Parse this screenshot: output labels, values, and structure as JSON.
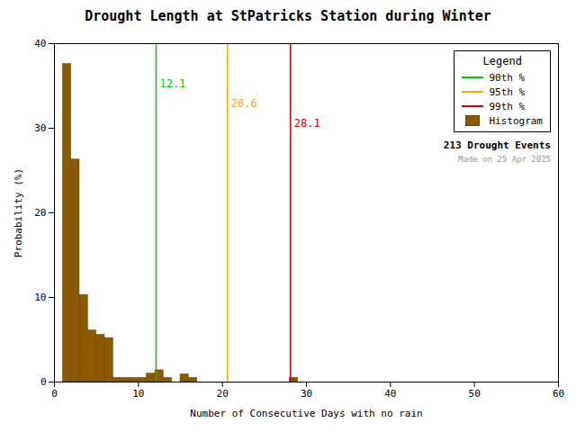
{
  "chart_data": {
    "type": "histogram",
    "title": "Drought Length at StPatricks Station during Winter",
    "xlabel": "Number of Consecutive Days with no rain",
    "ylabel": "Probability (%)",
    "xlim": [
      0,
      60
    ],
    "ylim": [
      0,
      40
    ],
    "xticks": [
      0,
      10,
      20,
      30,
      40,
      50,
      60
    ],
    "yticks": [
      0,
      10,
      20,
      30,
      40
    ],
    "bins": [
      1,
      2,
      3,
      4,
      5,
      6,
      7,
      8,
      9,
      10,
      11,
      12,
      13,
      14,
      15,
      16,
      17,
      18,
      19,
      20,
      21,
      22,
      23,
      24,
      25,
      26,
      27,
      28,
      29,
      30,
      31
    ],
    "series": [
      {
        "name": "90th %",
        "type": "vline",
        "color": "#00CC00",
        "values": [
          12.1
        ],
        "value_labels": [
          "12.1"
        ]
      },
      {
        "name": "95th %",
        "type": "vline",
        "color": "#FFA500",
        "values": [
          20.6
        ],
        "value_labels": [
          "20.6"
        ]
      },
      {
        "name": "99th %",
        "type": "vline",
        "color": "#CC0000",
        "values": [
          28.1
        ],
        "value_labels": [
          "28.1"
        ]
      },
      {
        "name": "Histogram",
        "type": "bar",
        "color": "#8B5A00",
        "values": [
          37.6,
          26.3,
          10.3,
          6.1,
          5.6,
          5.2,
          0.5,
          0.5,
          0.5,
          0.5,
          1.0,
          1.4,
          0.5,
          0.0,
          0.9,
          0.5,
          0.0,
          0.0,
          0.0,
          0.0,
          0.0,
          0.0,
          0.0,
          0.0,
          0.0,
          0.0,
          0.0,
          0.5,
          0.0,
          0.0
        ]
      }
    ],
    "legend": "upper right",
    "legend_title": "Legend",
    "annotations": [
      "213 Drought Events",
      "Made on 25 Apr 2025"
    ],
    "grid": false
  }
}
